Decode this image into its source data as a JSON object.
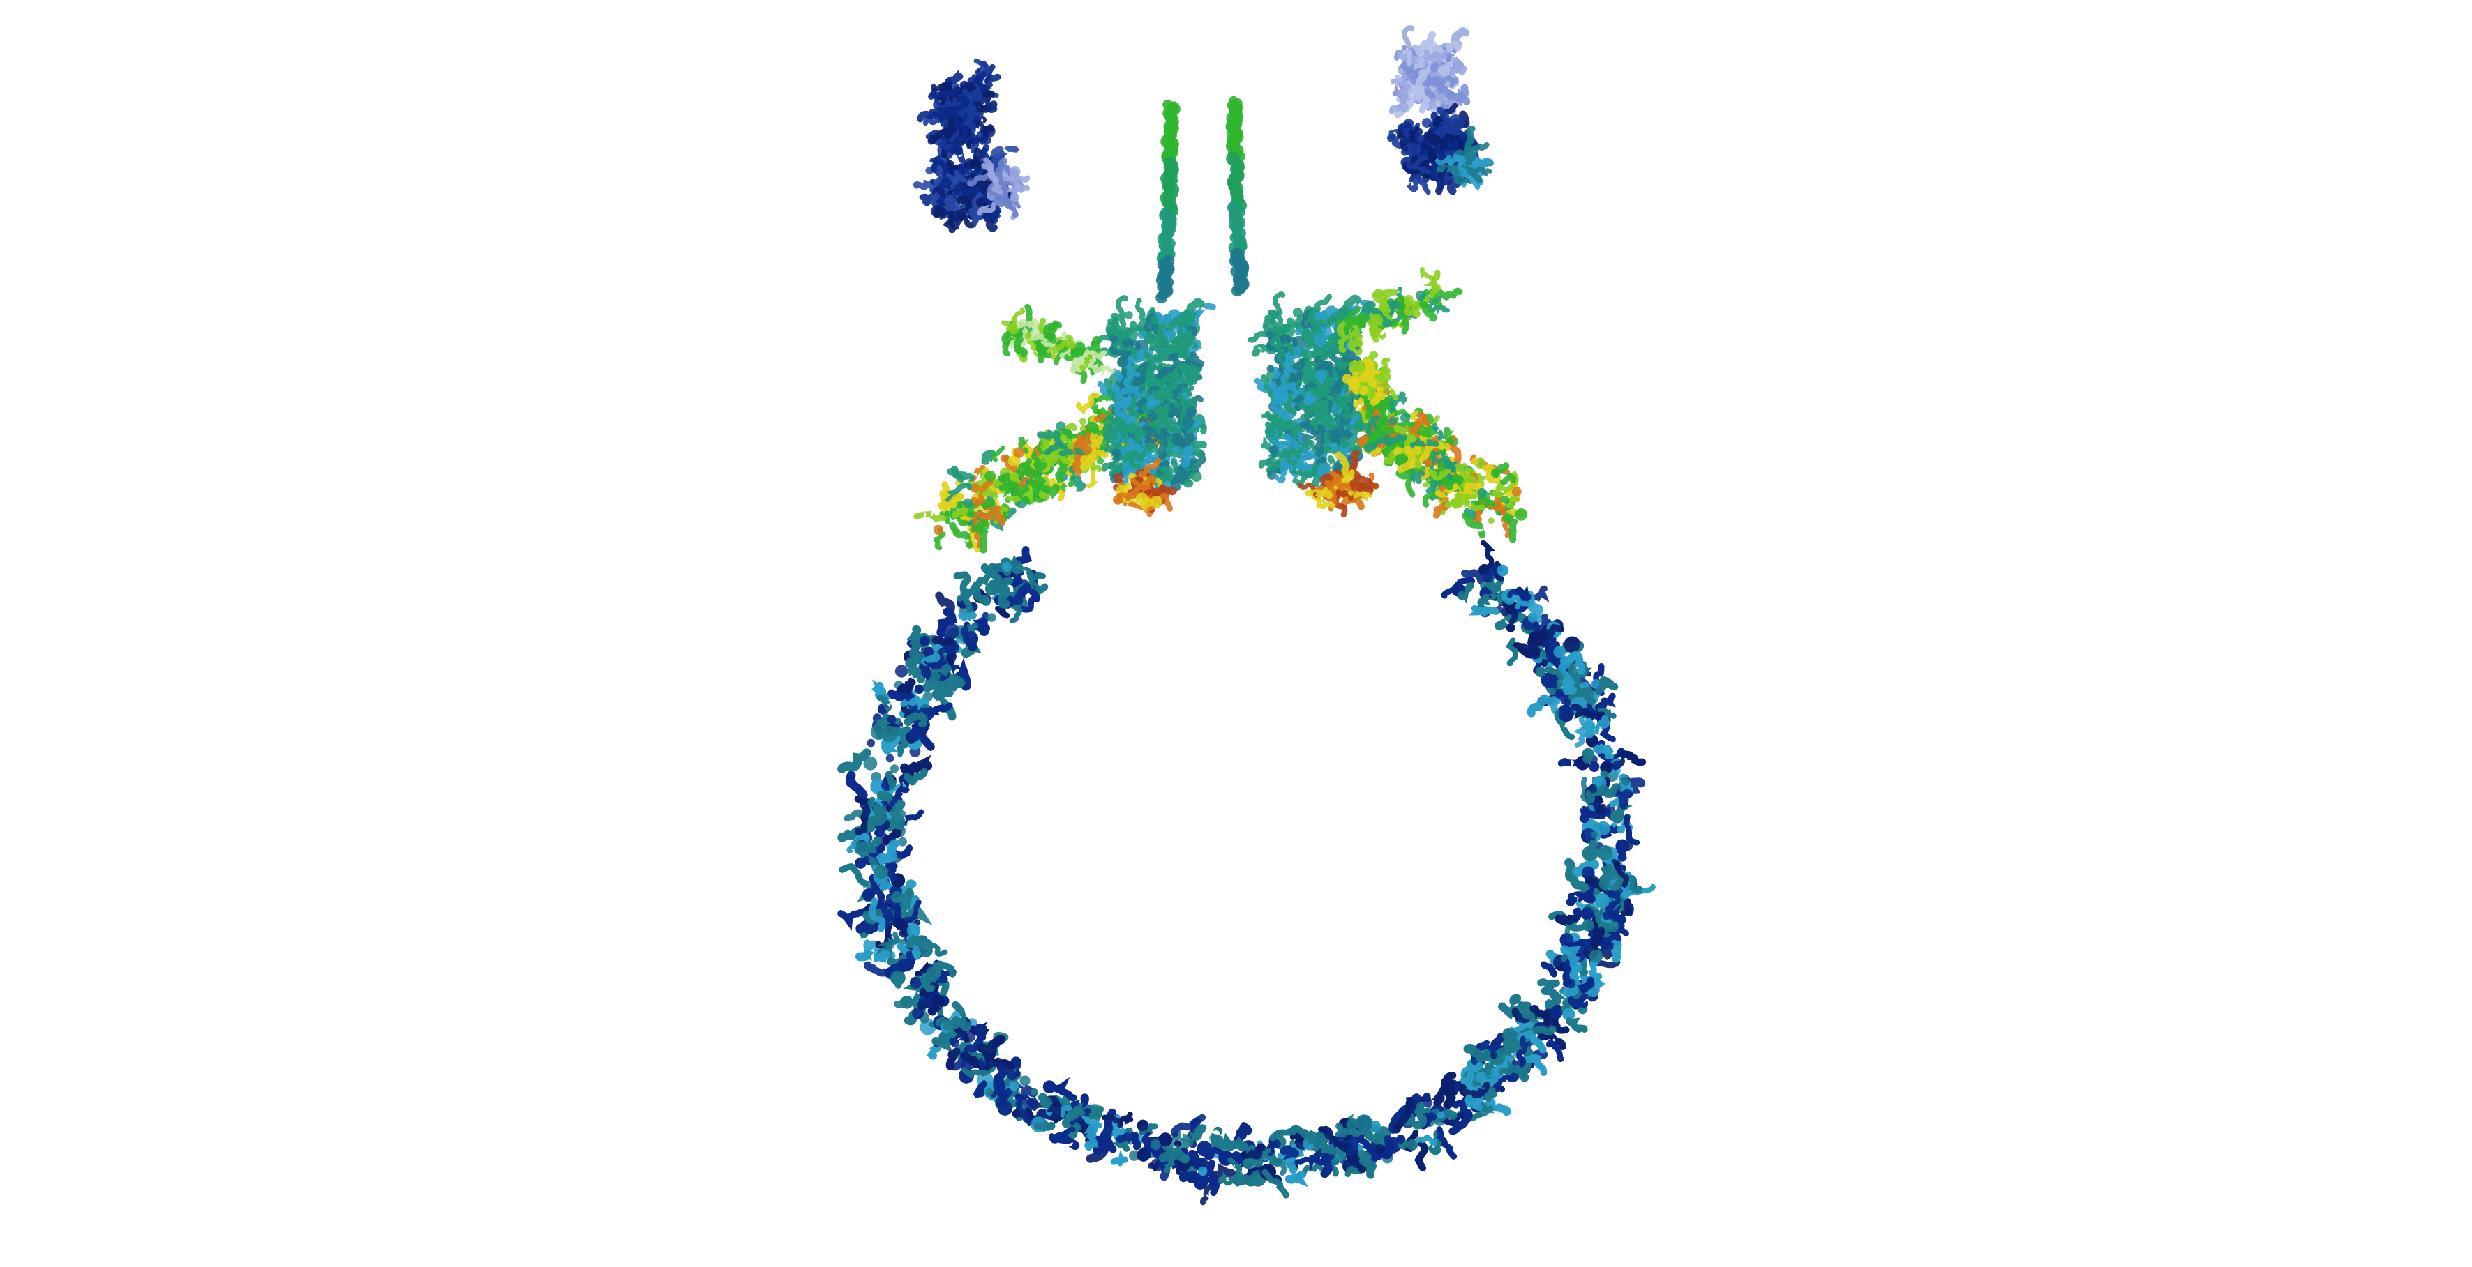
{
  "image": {
    "subject": "protein-structure-ribbon-render",
    "background_color": "#ffffff",
    "palette": {
      "deep_blue": "#0b2a8a",
      "navy": "#0a1f6e",
      "teal": "#1d7a8c",
      "cyan": "#2a9fc9",
      "sea_green": "#1f9a7a",
      "green": "#2fb52f",
      "lime": "#8ccf1f",
      "yellow": "#e0d21a",
      "orange": "#d9781a",
      "red_brown": "#b3401a",
      "pale_blue": "#9aa8e0"
    }
  }
}
